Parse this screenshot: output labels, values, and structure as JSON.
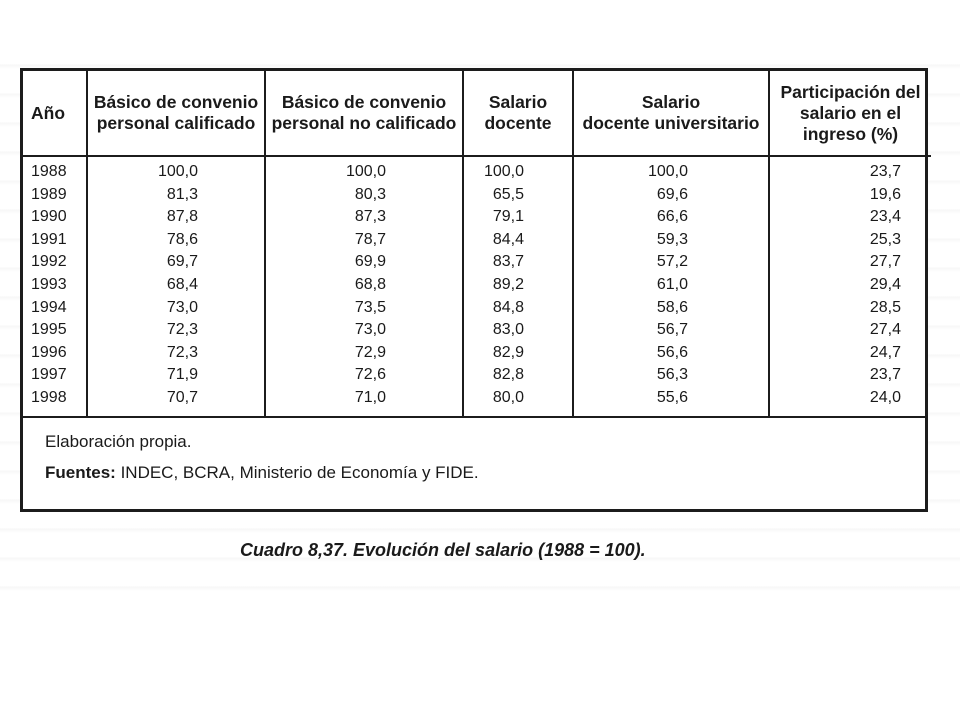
{
  "table": {
    "headers": [
      "Año",
      "Básico de convenio personal calificado",
      "Básico de convenio personal no calificado",
      "Salario docente",
      "Salario docente universitario",
      "Participación del salario en el ingreso (%)"
    ],
    "header_lines": [
      [
        "Año"
      ],
      [
        "Básico de convenio",
        "personal calificado"
      ],
      [
        "Básico de convenio",
        "personal no calificado"
      ],
      [
        "Salario",
        "docente"
      ],
      [
        "Salario",
        "docente universitario"
      ],
      [
        "Participación del",
        "salario en el",
        "ingreso (%)"
      ]
    ],
    "rows": [
      [
        "1988",
        "100,0",
        "100,0",
        "100,0",
        "100,0",
        "23,7"
      ],
      [
        "1989",
        "81,3",
        "80,3",
        "65,5",
        "69,6",
        "19,6"
      ],
      [
        "1990",
        "87,8",
        "87,3",
        "79,1",
        "66,6",
        "23,4"
      ],
      [
        "1991",
        "78,6",
        "78,7",
        "84,4",
        "59,3",
        "25,3"
      ],
      [
        "1992",
        "69,7",
        "69,9",
        "83,7",
        "57,2",
        "27,7"
      ],
      [
        "1993",
        "68,4",
        "68,8",
        "89,2",
        "61,0",
        "29,4"
      ],
      [
        "1994",
        "73,0",
        "73,5",
        "84,8",
        "58,6",
        "28,5"
      ],
      [
        "1995",
        "72,3",
        "73,0",
        "83,0",
        "56,7",
        "27,4"
      ],
      [
        "1996",
        "72,3",
        "72,9",
        "82,9",
        "56,6",
        "24,7"
      ],
      [
        "1997",
        "71,9",
        "72,6",
        "82,8",
        "56,3",
        "23,7"
      ],
      [
        "1998",
        "70,7",
        "71,0",
        "80,0",
        "55,6",
        "24,0"
      ]
    ]
  },
  "notes": {
    "elaboration": "Elaboración propia.",
    "sources_label": "Fuentes:",
    "sources_text": " INDEC, BCRA, Ministerio de Economía y FIDE."
  },
  "caption": "Cuadro 8,37. Evolución del salario (1988 = 100)."
}
